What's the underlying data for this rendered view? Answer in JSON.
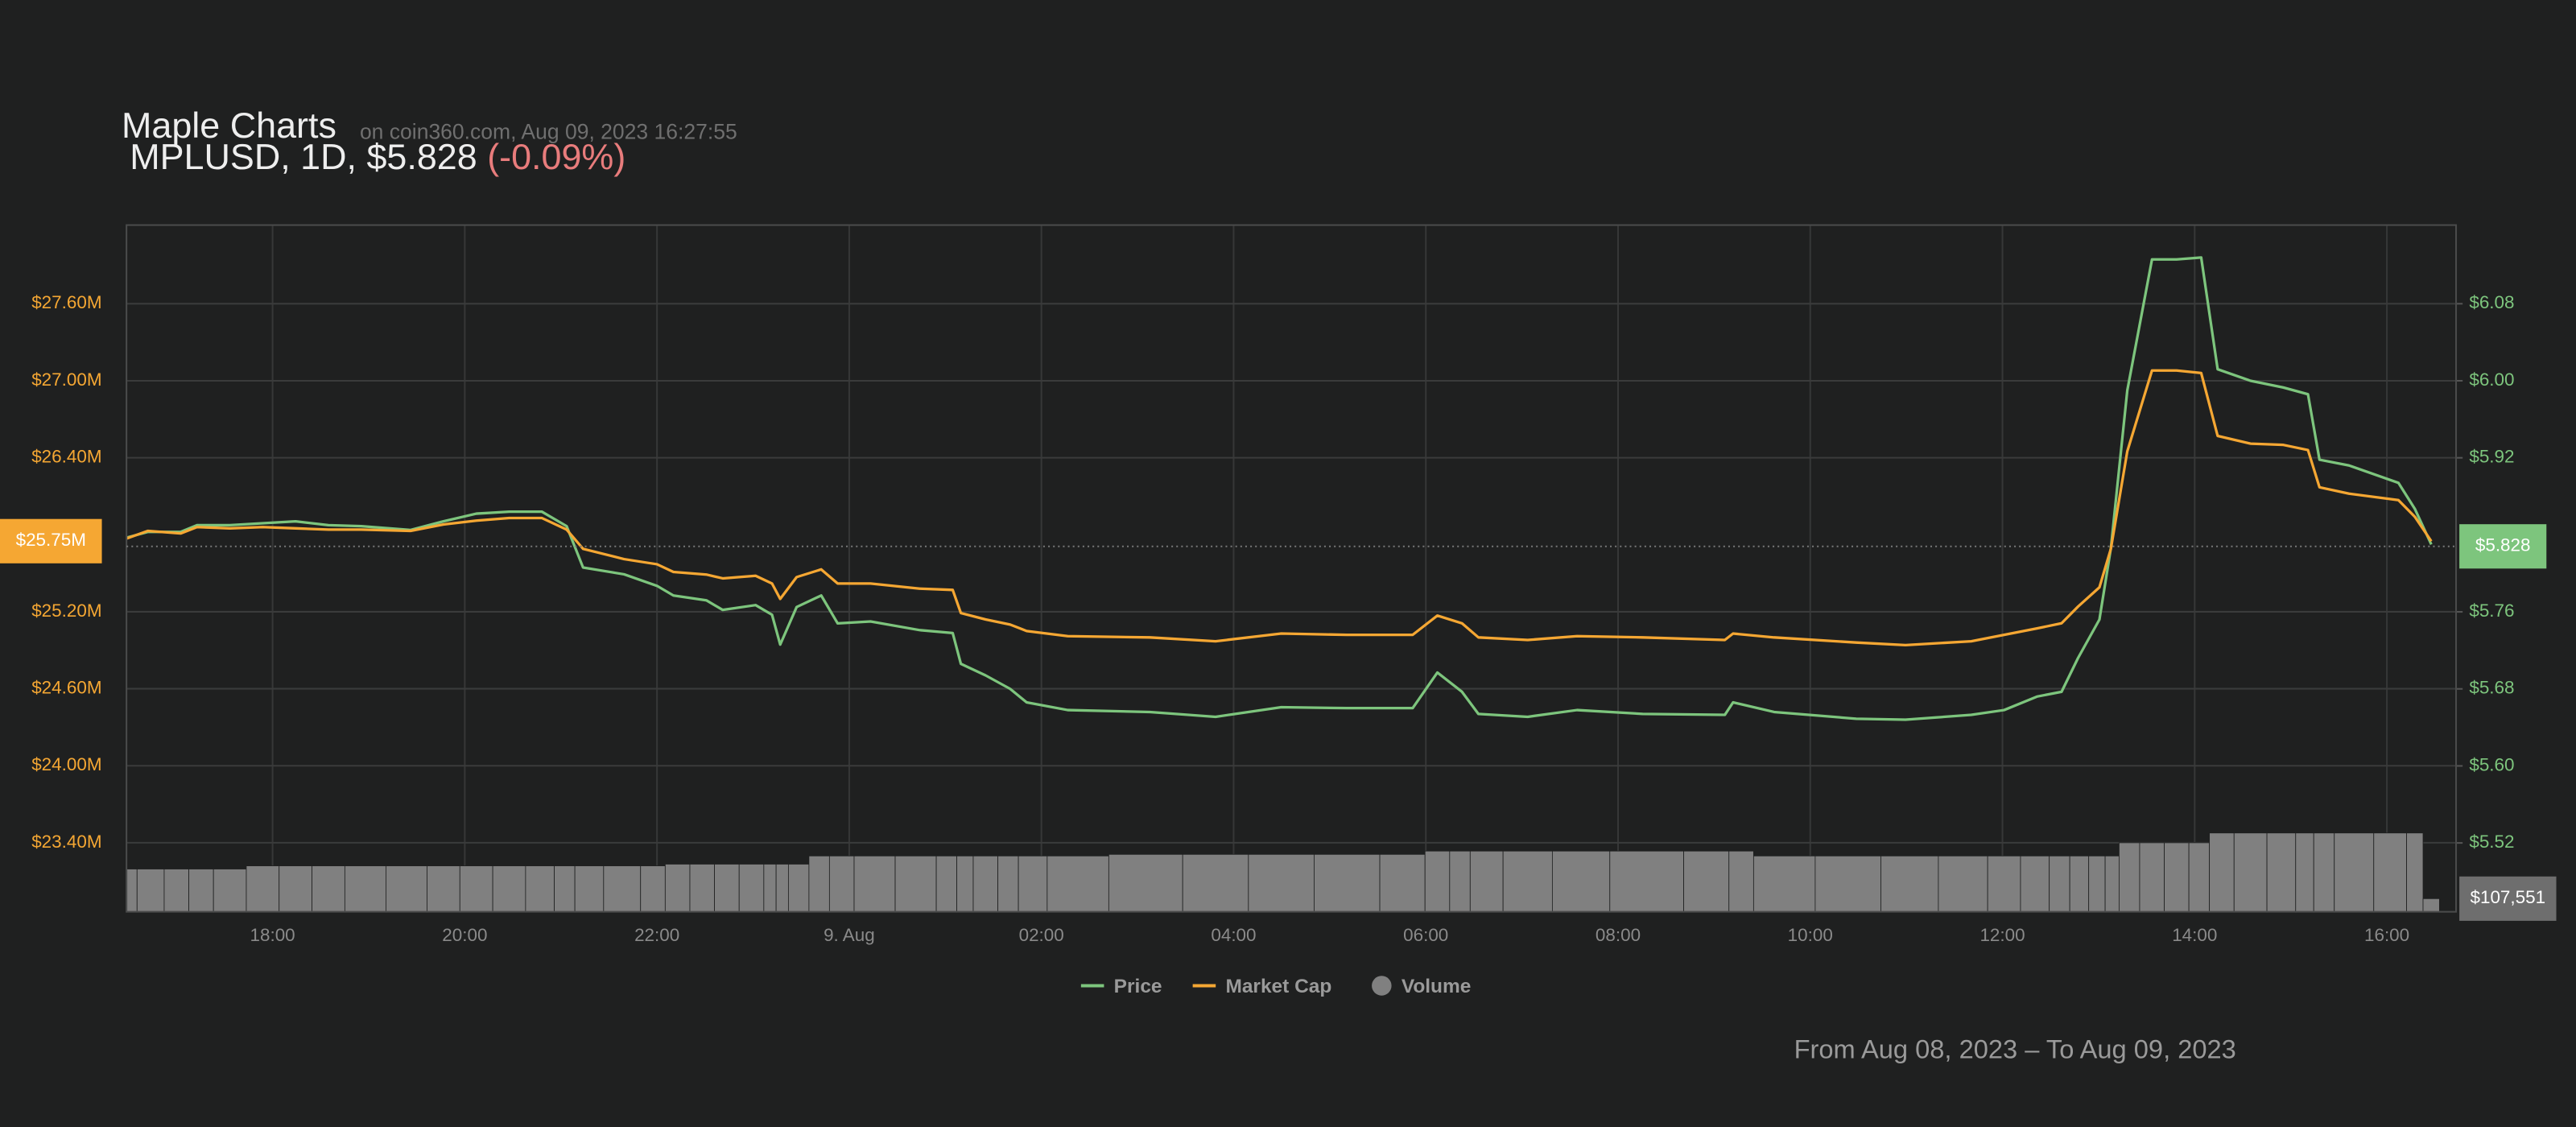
{
  "chart_data": {
    "type": "line",
    "title": "Maple Charts",
    "source": "on coin360.com, Aug 09, 2023 16:27:55",
    "subtitle": "MPLUSD, 1D, $5.828",
    "change": "(-0.09%)",
    "footer": "From Aug 08, 2023 – To Aug 09, 2023",
    "x": [
      16.479,
      16.701,
      17.043,
      17.214,
      17.556,
      17.897,
      18.239,
      18.581,
      18.923,
      19.436,
      19.778,
      20.12,
      20.462,
      20.803,
      21.06,
      21.231,
      21.658,
      22.0,
      22.171,
      22.513,
      22.684,
      23.026,
      23.197,
      23.282,
      23.453,
      23.709,
      23.88,
      24.222,
      24.735,
      25.077,
      25.162,
      25.419,
      25.675,
      25.846,
      26.274,
      27.128,
      27.812,
      28.496,
      29.179,
      29.863,
      30.12,
      30.376,
      30.547,
      31.06,
      31.573,
      32.256,
      33.111,
      33.197,
      33.624,
      34.479,
      34.991,
      35.675,
      36.017,
      36.359,
      36.615,
      36.786,
      37.009,
      37.128,
      37.299,
      37.556,
      37.812,
      38.068,
      38.239,
      38.581,
      38.923,
      39.179,
      39.299,
      39.607,
      40.12,
      40.291,
      40.462
    ],
    "xlim": [
      16.48,
      40.72
    ],
    "xticks": [
      {
        "value": 18,
        "label": "18:00"
      },
      {
        "value": 20,
        "label": "20:00"
      },
      {
        "value": 22,
        "label": "22:00"
      },
      {
        "value": 24,
        "label": "9. Aug"
      },
      {
        "value": 26,
        "label": "02:00"
      },
      {
        "value": 28,
        "label": "04:00"
      },
      {
        "value": 30,
        "label": "06:00"
      },
      {
        "value": 32,
        "label": "08:00"
      },
      {
        "value": 34,
        "label": "10:00"
      },
      {
        "value": 36,
        "label": "12:00"
      },
      {
        "value": 38,
        "label": "14:00"
      },
      {
        "value": 40,
        "label": "16:00"
      }
    ],
    "ylim": [
      22862000,
      28213000
    ],
    "yticks": [
      {
        "value": 23400000,
        "label": "$23.40M"
      },
      {
        "value": 24000000,
        "label": "$24.00M"
      },
      {
        "value": 24600000,
        "label": "$24.60M"
      },
      {
        "value": 25200000,
        "label": "$25.20M"
      },
      {
        "value": 26400000,
        "label": "$26.40M"
      },
      {
        "value": 27000000,
        "label": "$27.00M"
      },
      {
        "value": 27600000,
        "label": "$27.60M"
      }
    ],
    "y2lim": [
      5.4485,
      6.1617
    ],
    "y2ticks": [
      {
        "value": 5.52,
        "label": "$5.52"
      },
      {
        "value": 5.6,
        "label": "$5.60"
      },
      {
        "value": 5.68,
        "label": "$5.68"
      },
      {
        "value": 5.76,
        "label": "$5.76"
      },
      {
        "value": 5.92,
        "label": "$5.92"
      },
      {
        "value": 6.0,
        "label": "$6.00"
      },
      {
        "value": 6.08,
        "label": "$6.08"
      }
    ],
    "y3lim": [
      0,
      5620000
    ],
    "grid": true,
    "series": [
      {
        "name": "Price",
        "color": "#7dc57d",
        "axis": "y2",
        "values": [
          5.837,
          5.843,
          5.843,
          5.85,
          5.85,
          5.852,
          5.854,
          5.85,
          5.849,
          5.845,
          5.854,
          5.862,
          5.864,
          5.864,
          5.849,
          5.806,
          5.799,
          5.787,
          5.777,
          5.772,
          5.762,
          5.767,
          5.757,
          5.726,
          5.765,
          5.777,
          5.748,
          5.75,
          5.741,
          5.738,
          5.706,
          5.694,
          5.68,
          5.666,
          5.658,
          5.656,
          5.651,
          5.661,
          5.66,
          5.66,
          5.697,
          5.677,
          5.654,
          5.651,
          5.658,
          5.654,
          5.653,
          5.666,
          5.656,
          5.649,
          5.648,
          5.653,
          5.658,
          5.672,
          5.677,
          5.712,
          5.752,
          5.826,
          5.99,
          6.126,
          6.126,
          6.128,
          6.012,
          6.0,
          5.993,
          5.986,
          5.918,
          5.912,
          5.894,
          5.867,
          5.83
        ]
      },
      {
        "name": "Market Cap",
        "color": "#f5a733",
        "axis": "y",
        "values": [
          25770000,
          25830000,
          25810000,
          25860000,
          25850000,
          25860000,
          25850000,
          25840000,
          25840000,
          25830000,
          25880000,
          25910000,
          25930000,
          25930000,
          25840000,
          25690000,
          25610000,
          25570000,
          25510000,
          25490000,
          25460000,
          25480000,
          25420000,
          25300000,
          25470000,
          25530000,
          25420000,
          25420000,
          25380000,
          25370000,
          25190000,
          25140000,
          25100000,
          25050000,
          25010000,
          25000000,
          24970000,
          25030000,
          25020000,
          25020000,
          25170000,
          25110000,
          25000000,
          24980000,
          25010000,
          25000000,
          24980000,
          25030000,
          25000000,
          24960000,
          24940000,
          24970000,
          25020000,
          25070000,
          25110000,
          25240000,
          25390000,
          25690000,
          26450000,
          27080000,
          27080000,
          27060000,
          26570000,
          26510000,
          26500000,
          26460000,
          26170000,
          26120000,
          26070000,
          25940000,
          25750000
        ]
      },
      {
        "name": "Volume",
        "color": "#808080",
        "axis": "y3",
        "kind": "bar",
        "values": [
          350000,
          350000,
          350000,
          350000,
          350000,
          376000,
          376000,
          376000,
          376000,
          376000,
          376000,
          376000,
          376000,
          376000,
          376000,
          376000,
          376000,
          376000,
          390000,
          390000,
          390000,
          390000,
          390000,
          390000,
          390000,
          457000,
          457000,
          457000,
          457000,
          457000,
          457000,
          457000,
          457000,
          457000,
          457000,
          470000,
          470000,
          470000,
          470000,
          470000,
          497000,
          497000,
          497000,
          497000,
          497000,
          497000,
          497000,
          497000,
          457000,
          457000,
          457000,
          457000,
          457000,
          457000,
          457000,
          457000,
          457000,
          457000,
          565000,
          565000,
          565000,
          565000,
          645000,
          645000,
          645000,
          645000,
          645000,
          645000,
          645000,
          645000,
          107551
        ]
      }
    ],
    "current": [
      {
        "value": 25750000,
        "label": "$25.75M",
        "axis": "y",
        "color": "#f5a733"
      },
      {
        "value": 5.828,
        "label": "$5.828",
        "axis": "y2",
        "color": "#7dc57d"
      },
      {
        "value": 107551,
        "label": "$107,551",
        "axis": "y3",
        "color": "#6e6e6e"
      }
    ]
  }
}
